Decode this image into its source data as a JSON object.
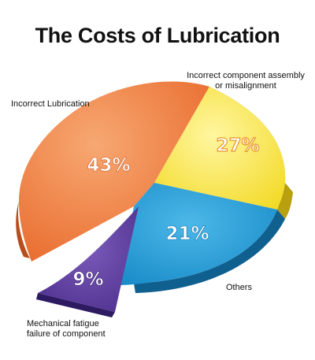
{
  "chart_data": {
    "type": "pie",
    "title": "The Costs of Lubrication",
    "categories": [
      "Incorrect Lubrication",
      "Incorrect component assembly or misalignment",
      "Others",
      "Mechanical fatigue failure of component"
    ],
    "values": [
      43,
      27,
      21,
      9
    ],
    "value_labels": [
      "43%",
      "27%",
      "21%",
      "9%"
    ],
    "callouts": {
      "lubrication": "Incorrect Lubrication",
      "assembly_line1": "Incorrect component assembly",
      "assembly_line2": "or misalignment",
      "others": "Others",
      "fatigue_line1": "Mechanical fatigue",
      "fatigue_line2": "failure of component"
    },
    "colors": {
      "lubrication": "#ee7a3a",
      "assembly": "#f7e12a",
      "others": "#1b9bd8",
      "fatigue": "#5a3a9a"
    }
  }
}
